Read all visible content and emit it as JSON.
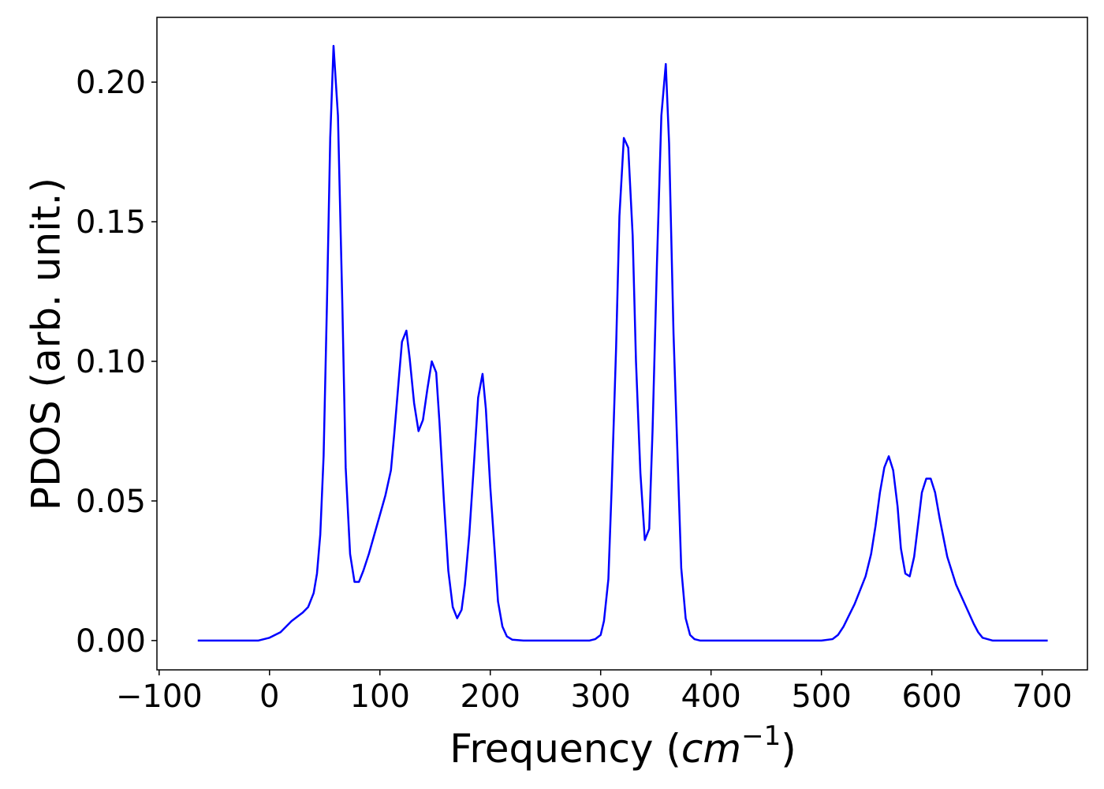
{
  "chart_data": {
    "type": "line",
    "xlabel": {
      "text": "Frequency (",
      "unit": "cm",
      "exponent": "−1",
      "close": ")"
    },
    "ylabel": "PDOS (arb. unit.)",
    "color": "#0000ff",
    "x": [
      -65,
      -10,
      0,
      10,
      20,
      30,
      35,
      40,
      43,
      46,
      49,
      52,
      55,
      58,
      62,
      66,
      69,
      73,
      77,
      81,
      85,
      90,
      95,
      100,
      105,
      110,
      113,
      117,
      120,
      124,
      127,
      131,
      135,
      139,
      143,
      147,
      151,
      154,
      158,
      162,
      166,
      170,
      174,
      177,
      181,
      185,
      189,
      193,
      196,
      200,
      204,
      207,
      211,
      215,
      220,
      230,
      290,
      295,
      300,
      303,
      307,
      310,
      314,
      317,
      321,
      325,
      329,
      332,
      336,
      340,
      344,
      347,
      351,
      355,
      359,
      362,
      366,
      370,
      373,
      377,
      381,
      385,
      390,
      500,
      510,
      515,
      520,
      525,
      530,
      535,
      540,
      545,
      549,
      553,
      557,
      561,
      565,
      569,
      572,
      576,
      580,
      584,
      588,
      591,
      595,
      599,
      603,
      607,
      611,
      614,
      618,
      622,
      630,
      638,
      642,
      646,
      655,
      705
    ],
    "values": [
      0,
      0,
      0.001,
      0.003,
      0.007,
      0.01,
      0.012,
      0.017,
      0.024,
      0.038,
      0.066,
      0.12,
      0.18,
      0.213,
      0.188,
      0.12,
      0.062,
      0.031,
      0.021,
      0.021,
      0.025,
      0.031,
      0.038,
      0.045,
      0.052,
      0.061,
      0.074,
      0.093,
      0.107,
      0.111,
      0.101,
      0.085,
      0.075,
      0.079,
      0.09,
      0.1,
      0.096,
      0.078,
      0.05,
      0.025,
      0.012,
      0.008,
      0.011,
      0.02,
      0.038,
      0.062,
      0.087,
      0.0955,
      0.083,
      0.055,
      0.032,
      0.014,
      0.005,
      0.0015,
      0.0003,
      0,
      0,
      0.0005,
      0.002,
      0.007,
      0.022,
      0.055,
      0.105,
      0.152,
      0.18,
      0.1765,
      0.145,
      0.1,
      0.06,
      0.036,
      0.04,
      0.075,
      0.135,
      0.188,
      0.2065,
      0.178,
      0.11,
      0.062,
      0.026,
      0.008,
      0.002,
      0.0005,
      0,
      0,
      0.0005,
      0.002,
      0.005,
      0.009,
      0.013,
      0.018,
      0.023,
      0.031,
      0.041,
      0.053,
      0.062,
      0.066,
      0.061,
      0.048,
      0.033,
      0.024,
      0.023,
      0.03,
      0.043,
      0.053,
      0.058,
      0.058,
      0.053,
      0.044,
      0.036,
      0.03,
      0.025,
      0.02,
      0.013,
      0.006,
      0.003,
      0.001,
      0,
      0
    ],
    "xlim": [
      -102,
      741
    ],
    "ylim": [
      -0.0105,
      0.2232
    ],
    "xticks": [
      {
        "value": -100,
        "label": "−100"
      },
      0,
      100,
      200,
      300,
      400,
      500,
      600,
      700
    ],
    "yticks": [
      {
        "value": 0,
        "label": "0.00"
      },
      {
        "value": 0.05,
        "label": "0.05"
      },
      {
        "value": 0.1,
        "label": "0.10"
      },
      {
        "value": 0.15,
        "label": "0.15"
      },
      {
        "value": 0.2,
        "label": "0.20"
      }
    ],
    "grid": false
  }
}
